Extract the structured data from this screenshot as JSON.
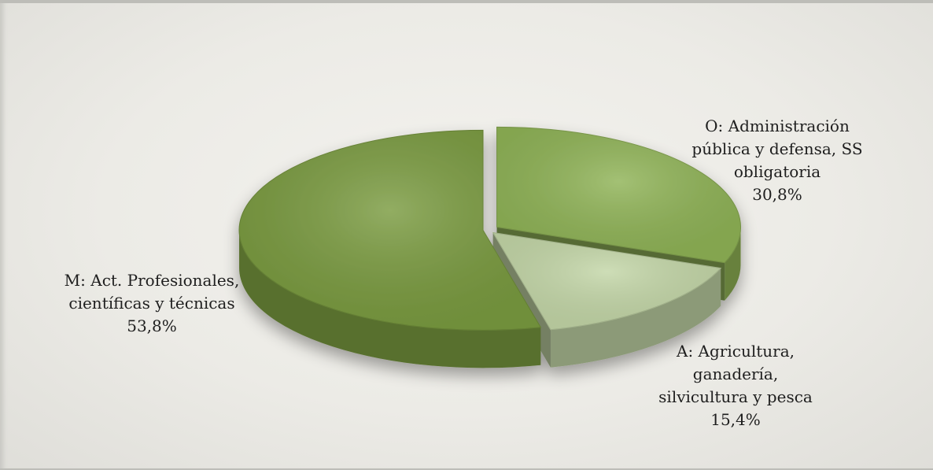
{
  "chart_data": {
    "type": "pie",
    "style": "3d-exploded",
    "slices": [
      {
        "label": "O: Administración\npública y defensa, SS\nobligatoria",
        "value": 30.8,
        "value_label": "30,8%",
        "color": "#8fb356"
      },
      {
        "label": "A: Agricultura,\nganadería,\nsilvicultura y pesca",
        "value": 15.4,
        "value_label": "15,4%",
        "color": "#c3d6a7"
      },
      {
        "label": "M: Act. Profesionales,\ncientíficas y técnicas",
        "value": 53.8,
        "value_label": "53,8%",
        "color": "#7a9b40"
      }
    ]
  }
}
